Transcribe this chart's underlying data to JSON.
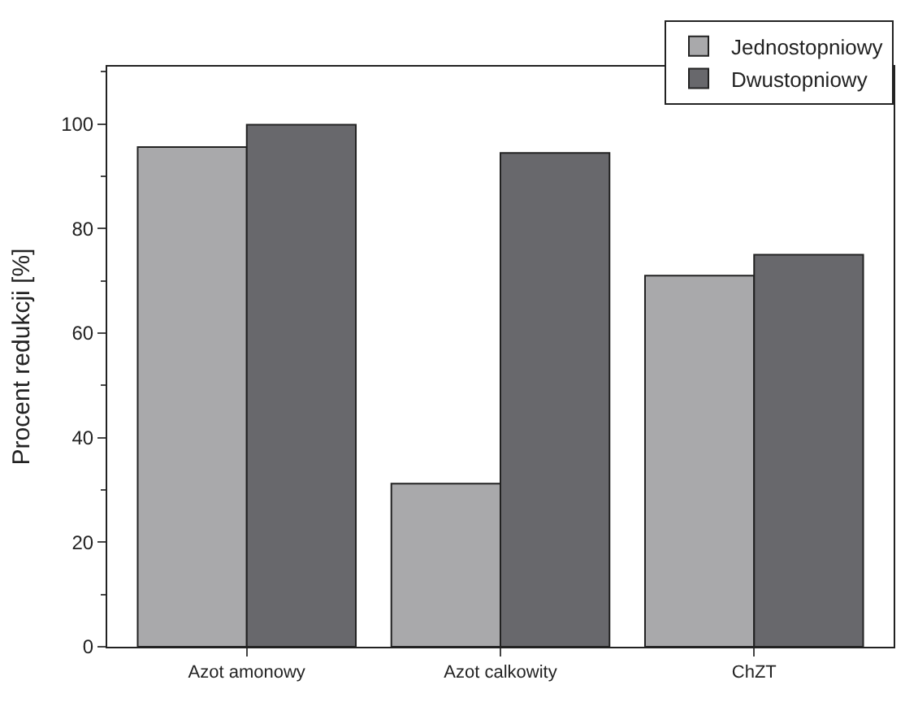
{
  "chart_data": {
    "type": "bar",
    "ylabel": "Procent redukcji [%]",
    "categories": [
      "Azot amonowy",
      "Azot calkowity",
      "ChZT"
    ],
    "series": [
      {
        "name": "Jednostopniowy",
        "color": "#a9a9ab",
        "values": [
          95.6,
          31.2,
          71.0
        ]
      },
      {
        "name": "Dwustopniowy",
        "color": "#68686c",
        "values": [
          99.9,
          94.5,
          75.0
        ]
      }
    ],
    "ylim": [
      0,
      111
    ],
    "yticks": [
      0,
      20,
      40,
      60,
      80,
      100
    ],
    "legend": "top right"
  }
}
